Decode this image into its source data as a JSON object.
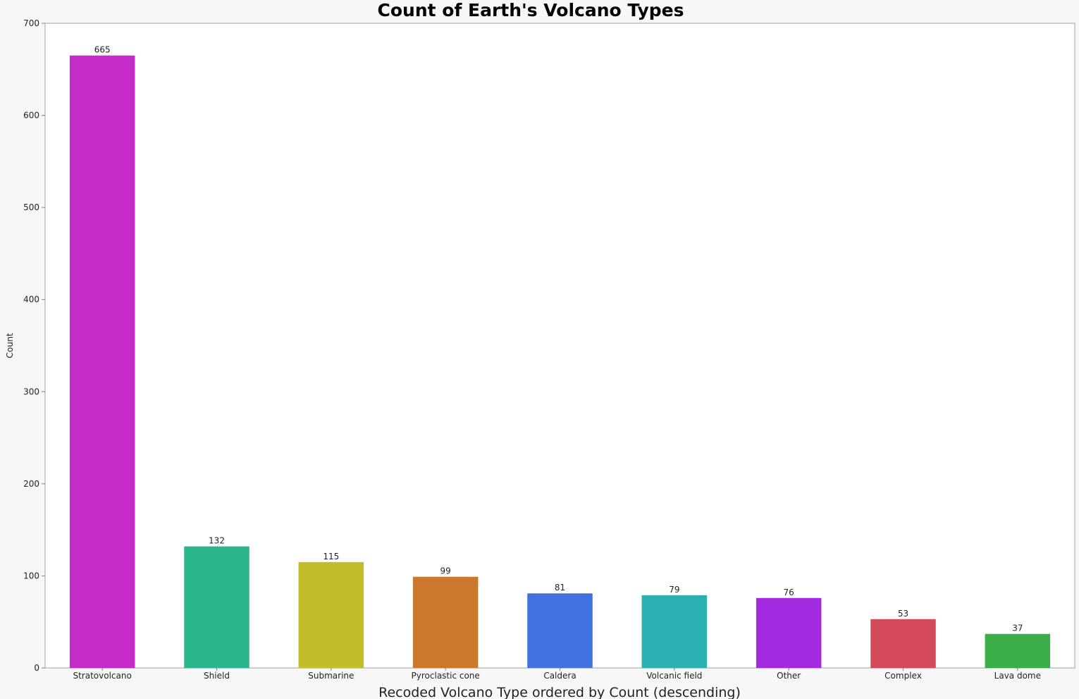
{
  "chart_data": {
    "type": "bar",
    "title": "Count of Earth's Volcano Types",
    "xlabel": "Recoded Volcano Type ordered by Count (descending)",
    "ylabel": "Count",
    "ylim": [
      0,
      700
    ],
    "yticks": [
      0,
      100,
      200,
      300,
      400,
      500,
      600,
      700
    ],
    "grid": false,
    "legend": "none",
    "categories": [
      "Stratovolcano",
      "Shield",
      "Submarine",
      "Pyroclastic cone",
      "Caldera",
      "Volcanic field",
      "Other",
      "Complex",
      "Lava dome"
    ],
    "values": [
      665,
      132,
      115,
      99,
      81,
      79,
      76,
      53,
      37
    ],
    "colors": [
      "#c42bc9",
      "#2bb58d",
      "#c4bd2b",
      "#cc782b",
      "#4272e0",
      "#2bb0b0",
      "#a22be0",
      "#d44a5a",
      "#3cae48"
    ]
  }
}
